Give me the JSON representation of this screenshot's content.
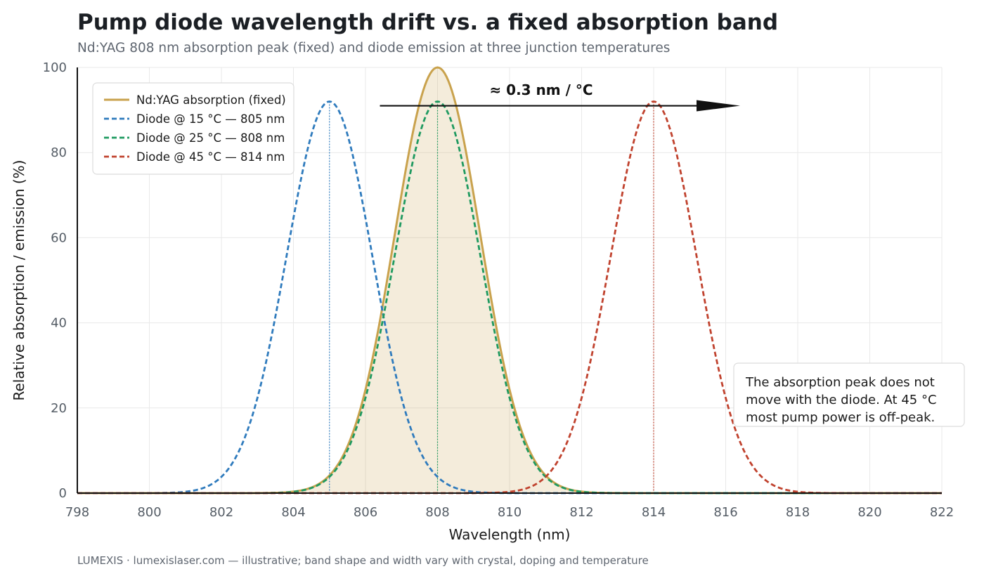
{
  "chart_data": {
    "type": "line",
    "title": "Pump diode wavelength drift vs. a fixed absorption band",
    "subtitle": "Nd:YAG 808 nm absorption peak (fixed) and diode emission at three junction temperatures",
    "xlabel": "Wavelength (nm)",
    "ylabel": "Relative absorption / emission (%)",
    "xlim": [
      798,
      822
    ],
    "ylim": [
      0,
      100
    ],
    "x_ticks": [
      "798",
      "800",
      "802",
      "804",
      "806",
      "808",
      "810",
      "812",
      "814",
      "816",
      "818",
      "820",
      "822"
    ],
    "y_ticks": [
      "0",
      "20",
      "40",
      "60",
      "80",
      "100"
    ],
    "grid": true,
    "legend_position": "top-left",
    "series": [
      {
        "name": "Nd:YAG absorption (fixed)",
        "style": "solid",
        "filled": true,
        "color": "#c9a24d",
        "peak_x": 808,
        "peak_y": 100,
        "fwhm_nm": 2.8
      },
      {
        "name": "Diode @ 15 °C — 805 nm",
        "style": "dashed",
        "color": "#2f7bbd",
        "peak_x": 805,
        "peak_y": 92,
        "fwhm_nm": 2.8
      },
      {
        "name": "Diode @ 25 °C — 808 nm",
        "style": "dashed",
        "color": "#1f9a60",
        "peak_x": 808,
        "peak_y": 92,
        "fwhm_nm": 2.8
      },
      {
        "name": "Diode @ 45 °C — 814 nm",
        "style": "dashed",
        "color": "#c0422e",
        "peak_x": 814,
        "peak_y": 92,
        "fwhm_nm": 2.8
      }
    ],
    "annotations": {
      "arrow_label": "≈ 0.3 nm / °C",
      "arrow_from": [
        806.4,
        91
      ],
      "arrow_to": [
        816.4,
        91
      ],
      "note_lines": [
        "The absorption peak does not",
        "move with the diode. At 45 °C",
        "most pump power is off-peak."
      ]
    }
  },
  "footer": "LUMEXIS · lumexislaser.com — illustrative; band shape and width vary with crystal, doping and temperature"
}
